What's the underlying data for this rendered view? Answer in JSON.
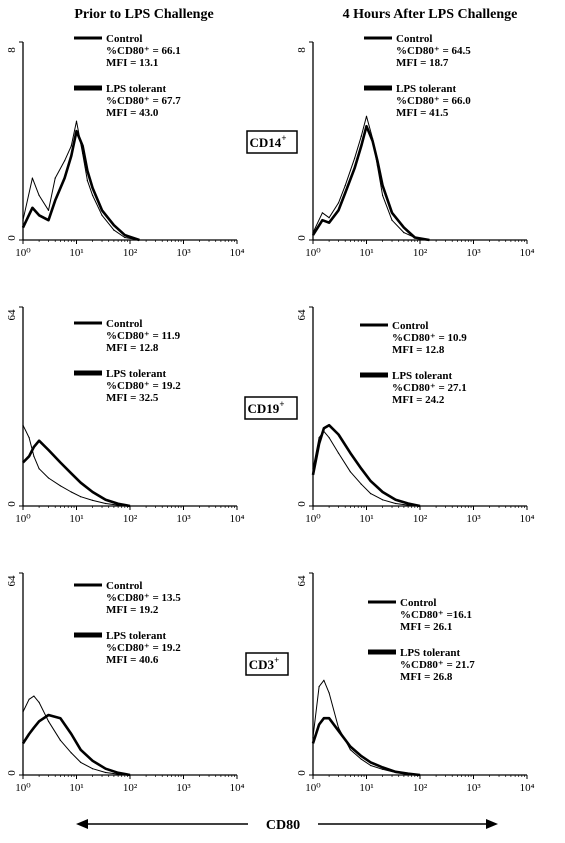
{
  "column_titles": [
    "Prior to LPS Challenge",
    "4 Hours After LPS Challenge"
  ],
  "row_markers": [
    "CD14",
    "CD19",
    "CD3"
  ],
  "marker_superscript": "+",
  "shared_xlabel": "CD80",
  "chart_data": [
    {
      "type": "line",
      "panel": "CD14-prior",
      "x_scale": "log",
      "xlim": [
        1,
        10000
      ],
      "ylim": [
        0,
        8
      ],
      "x_tick_labels": [
        "10⁰",
        "10¹",
        "10²",
        "10³",
        "10⁴"
      ],
      "y_tick_labels": [
        "0",
        "8"
      ],
      "series": [
        {
          "name": "Control",
          "pct_label": "%CD80⁺ = 66.1",
          "mfi_label": "MFI = 13.1",
          "x": [
            1,
            1.5,
            2,
            3,
            4,
            6,
            8,
            10,
            13,
            16,
            20,
            30,
            50,
            80,
            150
          ],
          "y": [
            0.8,
            2.5,
            1.8,
            1.2,
            2.5,
            3.2,
            3.8,
            4.8,
            3.5,
            2.4,
            1.8,
            1.0,
            0.4,
            0.1,
            0
          ]
        },
        {
          "name": "LPS tolerant",
          "pct_label": "%CD80⁺ = 67.7",
          "mfi_label": "MFI = 43.0",
          "x": [
            1,
            1.5,
            2,
            3,
            4,
            6,
            8,
            10,
            13,
            16,
            20,
            30,
            50,
            80,
            150
          ],
          "y": [
            0.5,
            1.3,
            1.0,
            0.8,
            1.6,
            2.5,
            3.4,
            4.4,
            3.8,
            2.8,
            2.1,
            1.2,
            0.6,
            0.2,
            0
          ]
        }
      ]
    },
    {
      "type": "line",
      "panel": "CD14-after",
      "x_scale": "log",
      "xlim": [
        1,
        10000
      ],
      "ylim": [
        0,
        8
      ],
      "x_tick_labels": [
        "10⁰",
        "10¹",
        "10²",
        "10³",
        "10⁴"
      ],
      "y_tick_labels": [
        "0",
        "8"
      ],
      "series": [
        {
          "name": "Control",
          "pct_label": "%CD80⁺ = 64.5",
          "mfi_label": "MFI = 18.7",
          "x": [
            1,
            1.5,
            2,
            3,
            4,
            6,
            8,
            10,
            13,
            16,
            20,
            30,
            50,
            80,
            150
          ],
          "y": [
            0.3,
            1.1,
            0.9,
            1.5,
            2.2,
            3.3,
            4.2,
            5.0,
            4.1,
            3.0,
            1.8,
            0.8,
            0.3,
            0.1,
            0
          ]
        },
        {
          "name": "LPS tolerant",
          "pct_label": "%CD80⁺ = 66.0",
          "mfi_label": "MFI = 41.5",
          "x": [
            1,
            1.5,
            2,
            3,
            4,
            6,
            8,
            10,
            13,
            16,
            20,
            30,
            50,
            80,
            150
          ],
          "y": [
            0.2,
            0.8,
            0.7,
            1.2,
            1.9,
            2.9,
            3.8,
            4.6,
            4.0,
            3.2,
            2.2,
            1.1,
            0.5,
            0.1,
            0
          ]
        }
      ]
    },
    {
      "type": "line",
      "panel": "CD19-prior",
      "x_scale": "log",
      "xlim": [
        1,
        10000
      ],
      "ylim": [
        0,
        64
      ],
      "x_tick_labels": [
        "10⁰",
        "10¹",
        "10²",
        "10³",
        "10⁴"
      ],
      "y_tick_labels": [
        "0",
        "64"
      ],
      "series": [
        {
          "name": "Control",
          "pct_label": "%CD80⁺ = 11.9",
          "mfi_label": "MFI = 12.8",
          "x": [
            1,
            1.3,
            1.6,
            2,
            3,
            5,
            8,
            12,
            20,
            35,
            60,
            100
          ],
          "y": [
            26,
            22,
            16,
            12,
            9,
            6.5,
            4.5,
            3,
            1.8,
            0.8,
            0.3,
            0
          ]
        },
        {
          "name": "LPS tolerant",
          "pct_label": "%CD80⁺ = 19.2",
          "mfi_label": "MFI = 32.5",
          "x": [
            1,
            1.3,
            1.6,
            2,
            3,
            5,
            8,
            12,
            20,
            35,
            60,
            100
          ],
          "y": [
            14,
            16,
            19,
            21,
            18,
            14,
            10.5,
            7.5,
            4.5,
            2,
            0.7,
            0
          ]
        }
      ]
    },
    {
      "type": "line",
      "panel": "CD19-after",
      "x_scale": "log",
      "xlim": [
        1,
        10000
      ],
      "ylim": [
        0,
        64
      ],
      "x_tick_labels": [
        "10⁰",
        "10¹",
        "10²",
        "10³",
        "10⁴"
      ],
      "y_tick_labels": [
        "0",
        "64"
      ],
      "series": [
        {
          "name": "Control",
          "pct_label": "%CD80⁺ = 10.9",
          "mfi_label": "MFI = 12.8",
          "x": [
            1,
            1.3,
            1.6,
            2,
            3,
            5,
            8,
            12,
            20,
            35,
            60,
            100
          ],
          "y": [
            12,
            22,
            24,
            22,
            17,
            11,
            7,
            4,
            2,
            0.8,
            0.3,
            0
          ]
        },
        {
          "name": "LPS tolerant",
          "pct_label": "%CD80⁺ = 27.1",
          "mfi_label": "MFI = 24.2",
          "x": [
            1,
            1.3,
            1.6,
            2,
            3,
            5,
            8,
            12,
            20,
            35,
            60,
            100
          ],
          "y": [
            10,
            20,
            25,
            26,
            23,
            17,
            12,
            8,
            4.5,
            2,
            0.8,
            0
          ]
        }
      ]
    },
    {
      "type": "line",
      "panel": "CD3-prior",
      "x_scale": "log",
      "xlim": [
        1,
        10000
      ],
      "ylim": [
        0,
        64
      ],
      "x_tick_labels": [
        "10⁰",
        "10¹",
        "10²",
        "10³",
        "10⁴"
      ],
      "y_tick_labels": [
        "0",
        "64"
      ],
      "series": [
        {
          "name": "Control",
          "pct_label": "%CD80⁺ = 13.5",
          "mfi_label": "MFI = 19.2",
          "x": [
            1,
            1.3,
            1.6,
            2,
            3,
            5,
            8,
            12,
            20,
            35,
            60,
            100
          ],
          "y": [
            20,
            24,
            25,
            23,
            17,
            11,
            7,
            4,
            2,
            0.8,
            0.3,
            0
          ]
        },
        {
          "name": "LPS tolerant",
          "pct_label": "%CD80⁺ = 19.2",
          "mfi_label": "MFI = 40.6",
          "x": [
            1,
            1.3,
            1.6,
            2,
            3,
            5,
            8,
            12,
            20,
            35,
            60,
            100
          ],
          "y": [
            10,
            13,
            15,
            17,
            19,
            18,
            13,
            8,
            4.5,
            2,
            0.7,
            0
          ]
        }
      ]
    },
    {
      "type": "line",
      "panel": "CD3-after",
      "x_scale": "log",
      "xlim": [
        1,
        10000
      ],
      "ylim": [
        0,
        64
      ],
      "x_tick_labels": [
        "10⁰",
        "10¹",
        "10²",
        "10³",
        "10⁴"
      ],
      "y_tick_labels": [
        "0",
        "64"
      ],
      "series": [
        {
          "name": "Control",
          "pct_label": "%CD80⁺ =16.1",
          "mfi_label": "MFI = 26.1",
          "x": [
            1,
            1.3,
            1.6,
            2,
            3,
            5,
            8,
            12,
            20,
            35,
            60,
            100
          ],
          "y": [
            12,
            28,
            30,
            26,
            15,
            8,
            5,
            3,
            1.8,
            0.8,
            0.3,
            0
          ]
        },
        {
          "name": "LPS tolerant",
          "pct_label": "%CD80⁺ = 21.7",
          "mfi_label": "MFI = 26.8",
          "x": [
            1,
            1.3,
            1.6,
            2,
            3,
            5,
            8,
            12,
            20,
            35,
            60,
            100
          ],
          "y": [
            10,
            16,
            18,
            18,
            14,
            9,
            6,
            4,
            2.4,
            1,
            0.4,
            0
          ]
        }
      ]
    }
  ]
}
